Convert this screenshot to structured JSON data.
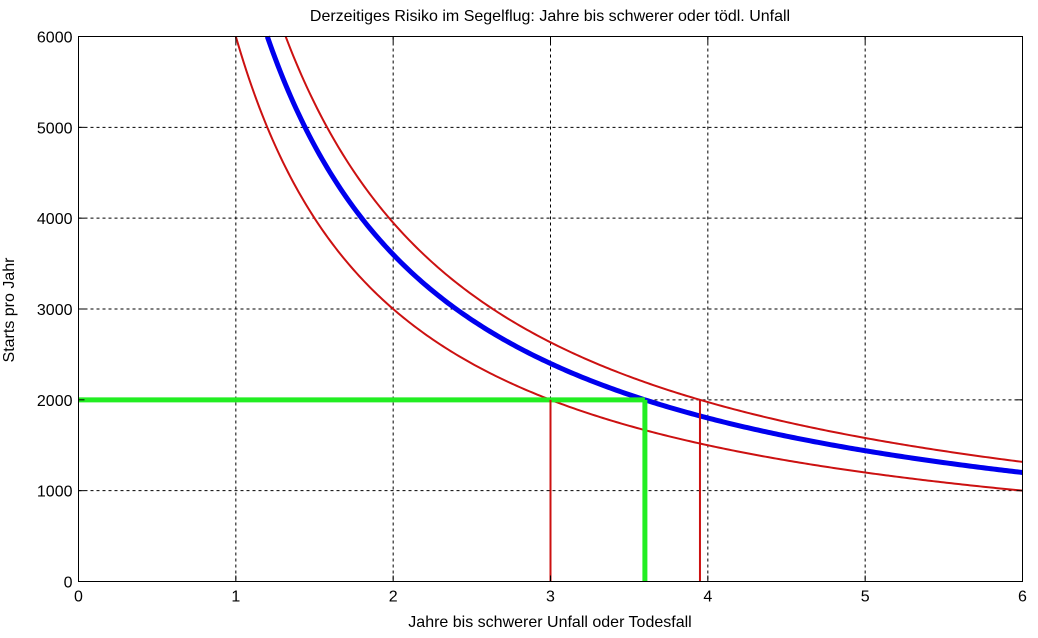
{
  "chart_data": {
    "type": "line",
    "title": "Derzeitiges Risiko im Segelflug: Jahre bis schwerer oder tödl. Unfall",
    "xlabel": "Jahre bis schwerer Unfall oder Todesfall",
    "ylabel": "Starts pro Jahr",
    "xlim": [
      0,
      6
    ],
    "ylim": [
      0,
      6000
    ],
    "xticks": [
      0,
      1,
      2,
      3,
      4,
      5,
      6
    ],
    "yticks": [
      0,
      1000,
      2000,
      3000,
      4000,
      5000,
      6000
    ],
    "grid": true,
    "curve_x_start": 1,
    "curve_x_end": 6,
    "series": [
      {
        "role": "central",
        "color": "#0000ee",
        "stroke": "thick",
        "constant": 7200
      },
      {
        "role": "upper-bound",
        "color": "#cc1111",
        "stroke": "thin",
        "constant": 7900
      },
      {
        "role": "lower-bound",
        "color": "#cc1111",
        "stroke": "thin",
        "constant": 6000
      }
    ],
    "reference_lines": [
      {
        "role": "horizontal-marker",
        "color": "#22ee22",
        "stroke": "thick",
        "from": [
          0,
          2000
        ],
        "to": [
          3.6,
          2000
        ]
      },
      {
        "role": "vertical-marker",
        "color": "#22ee22",
        "stroke": "thick",
        "from": [
          3.6,
          0
        ],
        "to": [
          3.6,
          2000
        ]
      },
      {
        "role": "vertical-marker",
        "color": "#cc1111",
        "stroke": "thin",
        "from": [
          3.0,
          0
        ],
        "to": [
          3.0,
          2000
        ]
      },
      {
        "role": "vertical-marker",
        "color": "#cc1111",
        "stroke": "thin",
        "from": [
          3.95,
          0
        ],
        "to": [
          3.95,
          2000
        ]
      }
    ]
  }
}
